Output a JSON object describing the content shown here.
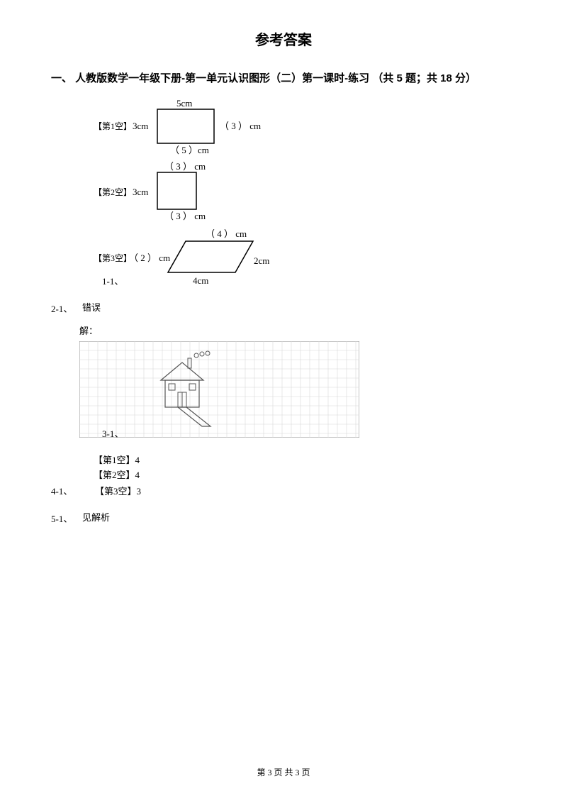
{
  "title": "参考答案",
  "section_heading": "一、 人教版数学一年级下册-第一单元认识图形（二）第一课时-练习 （共 5 题；共 18 分）",
  "q1_1_label": "1-1、",
  "q2_1_label": "2-1、",
  "q2_1_answer": "错误",
  "q3_solution": "解：",
  "q3_1_label": "3-1、",
  "q4_blank1": "【第1空】4",
  "q4_blank2": "【第2空】4",
  "q4_blank3": "【第3空】3",
  "q4_1_label": "4-1、",
  "q5_1_label": "5-1、",
  "q5_answer": "见解析",
  "footer": "第 3 页 共 3 页",
  "fig1": {
    "blank1_label": "【第1空】",
    "left": "3cm",
    "top": "5cm",
    "right": "（ 3 ） cm",
    "bottom": "（ 5  ）cm",
    "rect": {
      "stroke": "#000000",
      "fill": "none",
      "stroke_width": 1.5
    }
  },
  "fig2": {
    "blank2_label": "【第2空】",
    "left": "3cm",
    "top": "（ 3 ） cm",
    "bottom": "（ 3 ） cm",
    "rect": {
      "stroke": "#000000",
      "fill": "none",
      "stroke_width": 1.5
    }
  },
  "fig3": {
    "blank3_label": "【第3空】",
    "left": "（ 2 ） cm",
    "top": "（ 4 ） cm",
    "right": "2cm",
    "bottom": "4cm",
    "para": {
      "stroke": "#000000",
      "fill": "none",
      "stroke_width": 1.5
    }
  },
  "grid_drawing": {
    "grid_color": "#d8d8d8",
    "border_color": "#888888",
    "stroke_color": "#555555",
    "cols": 30,
    "rows": 10,
    "cell": 13
  }
}
